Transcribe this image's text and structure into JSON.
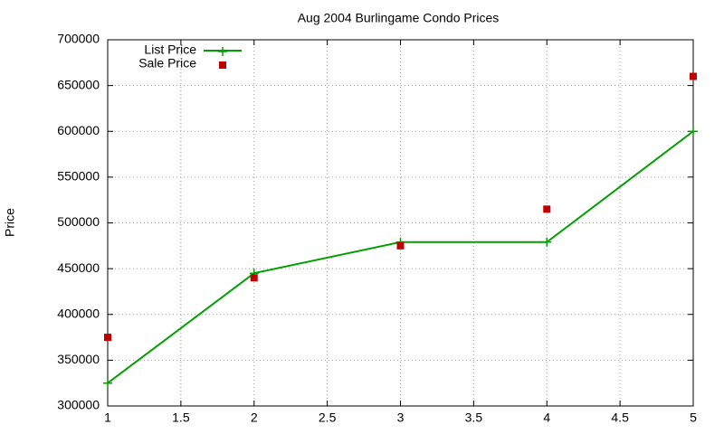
{
  "chart_data": {
    "type": "line",
    "title": "Aug 2004 Burlingame Condo Prices",
    "y_label": "Price",
    "x": [
      1,
      2,
      3,
      4,
      5
    ],
    "series": [
      {
        "name": "List Price",
        "color": "#00a000",
        "style": "linespoints",
        "marker": "plus",
        "values": [
          325000,
          445000,
          479000,
          479000,
          600000
        ]
      },
      {
        "name": "Sale Price",
        "color": "#c00000",
        "style": "points",
        "marker": "square",
        "values": [
          375000,
          440000,
          475000,
          515000,
          660000
        ]
      }
    ],
    "xlim": [
      1,
      5
    ],
    "xticks": [
      1,
      1.5,
      2,
      2.5,
      3,
      3.5,
      4,
      4.5,
      5
    ],
    "ylim": [
      300000,
      700000
    ],
    "yticks": [
      300000,
      350000,
      400000,
      450000,
      500000,
      550000,
      600000,
      650000,
      700000
    ],
    "grid": true,
    "legend": "top-left"
  }
}
